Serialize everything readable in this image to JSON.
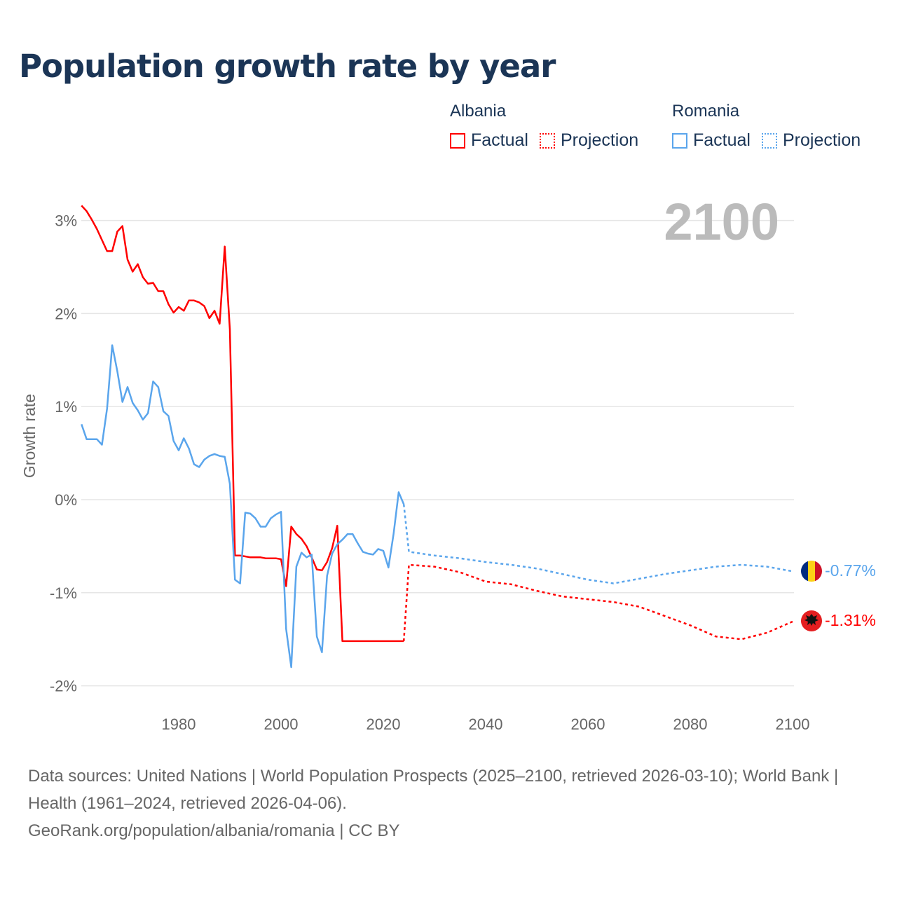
{
  "title": "Population growth rate by year",
  "legend": {
    "groups": [
      {
        "name": "Albania",
        "color": "#ff0000",
        "factual": "Factual",
        "projection": "Projection"
      },
      {
        "name": "Romania",
        "color": "#5aa5ec",
        "factual": "Factual",
        "projection": "Projection"
      }
    ]
  },
  "year_label": "2100",
  "end_labels": {
    "romania": "-0.77%",
    "albania": "-1.31%"
  },
  "footer": {
    "line1": "Data sources: United Nations | World Population Prospects (2025–2100, retrieved 2026-03-10); World Bank | Health (1961–2024, retrieved 2026-04-06).",
    "line2": "GeoRank.org/population/albania/romania | CC BY"
  },
  "chart_data": {
    "type": "line",
    "title": "Population growth rate by year",
    "xlabel": "",
    "ylabel": "Growth rate",
    "xlim": [
      1961,
      2100
    ],
    "ylim": [
      -2.25,
      3.3
    ],
    "xticks": [
      1980,
      2000,
      2020,
      2040,
      2060,
      2080,
      2100
    ],
    "xtick_labels": [
      "1980",
      "2000",
      "2020",
      "2040",
      "2060",
      "2080",
      "2100"
    ],
    "yticks": [
      3,
      2,
      1,
      0,
      -1,
      -2
    ],
    "ytick_labels": [
      "3%",
      "2%",
      "1%",
      "0%",
      "-1%",
      "-2%"
    ],
    "grid": true,
    "legend_position": "top-right",
    "series": [
      {
        "name": "Albania Factual",
        "color": "#ff0000",
        "style": "solid",
        "x_start": 1961,
        "values": [
          3.16,
          3.1,
          3.01,
          2.91,
          2.79,
          2.67,
          2.67,
          2.88,
          2.94,
          2.58,
          2.45,
          2.53,
          2.39,
          2.32,
          2.33,
          2.24,
          2.24,
          2.1,
          2.01,
          2.07,
          2.03,
          2.14,
          2.14,
          2.12,
          2.08,
          1.95,
          2.03,
          1.89,
          2.72,
          1.83,
          -0.6,
          -0.6,
          -0.61,
          -0.62,
          -0.62,
          -0.62,
          -0.63,
          -0.63,
          -0.63,
          -0.64,
          -0.93,
          -0.29,
          -0.37,
          -0.42,
          -0.5,
          -0.62,
          -0.75,
          -0.76,
          -0.67,
          -0.52,
          -0.28,
          -1.52,
          -1.52,
          -1.52,
          -1.52,
          -1.52,
          -1.52,
          -1.52,
          -1.52,
          -1.52,
          -1.52,
          -1.52,
          -1.52,
          -1.52
        ]
      },
      {
        "name": "Albania Projection",
        "color": "#ff0000",
        "style": "dotted",
        "x": [
          2024,
          2025,
          2030,
          2035,
          2040,
          2045,
          2050,
          2055,
          2060,
          2065,
          2070,
          2075,
          2080,
          2085,
          2090,
          2095,
          2100
        ],
        "values": [
          -1.52,
          -0.7,
          -0.72,
          -0.78,
          -0.88,
          -0.91,
          -0.98,
          -1.04,
          -1.07,
          -1.1,
          -1.15,
          -1.25,
          -1.35,
          -1.47,
          -1.5,
          -1.43,
          -1.31
        ]
      },
      {
        "name": "Romania Factual",
        "color": "#5aa5ec",
        "style": "solid",
        "x_start": 1961,
        "values": [
          0.81,
          0.65,
          0.65,
          0.65,
          0.59,
          0.98,
          1.66,
          1.38,
          1.05,
          1.21,
          1.04,
          0.96,
          0.86,
          0.93,
          1.27,
          1.21,
          0.95,
          0.9,
          0.63,
          0.53,
          0.66,
          0.55,
          0.38,
          0.35,
          0.43,
          0.47,
          0.49,
          0.47,
          0.46,
          0.17,
          -0.86,
          -0.9,
          -0.14,
          -0.15,
          -0.2,
          -0.29,
          -0.29,
          -0.2,
          -0.16,
          -0.13,
          -1.39,
          -1.8,
          -0.72,
          -0.57,
          -0.62,
          -0.59,
          -1.47,
          -1.64,
          -0.82,
          -0.58,
          -0.48,
          -0.43,
          -0.37,
          -0.37,
          -0.47,
          -0.56,
          -0.58,
          -0.59,
          -0.53,
          -0.55,
          -0.73,
          -0.37,
          0.08,
          -0.05
        ]
      },
      {
        "name": "Romania Projection",
        "color": "#5aa5ec",
        "style": "dotted",
        "x": [
          2024,
          2025,
          2030,
          2035,
          2040,
          2045,
          2050,
          2055,
          2060,
          2065,
          2070,
          2075,
          2080,
          2085,
          2090,
          2095,
          2100
        ],
        "values": [
          -0.05,
          -0.56,
          -0.6,
          -0.63,
          -0.67,
          -0.7,
          -0.74,
          -0.8,
          -0.86,
          -0.9,
          -0.85,
          -0.8,
          -0.76,
          -0.72,
          -0.7,
          -0.72,
          -0.77
        ]
      }
    ]
  }
}
